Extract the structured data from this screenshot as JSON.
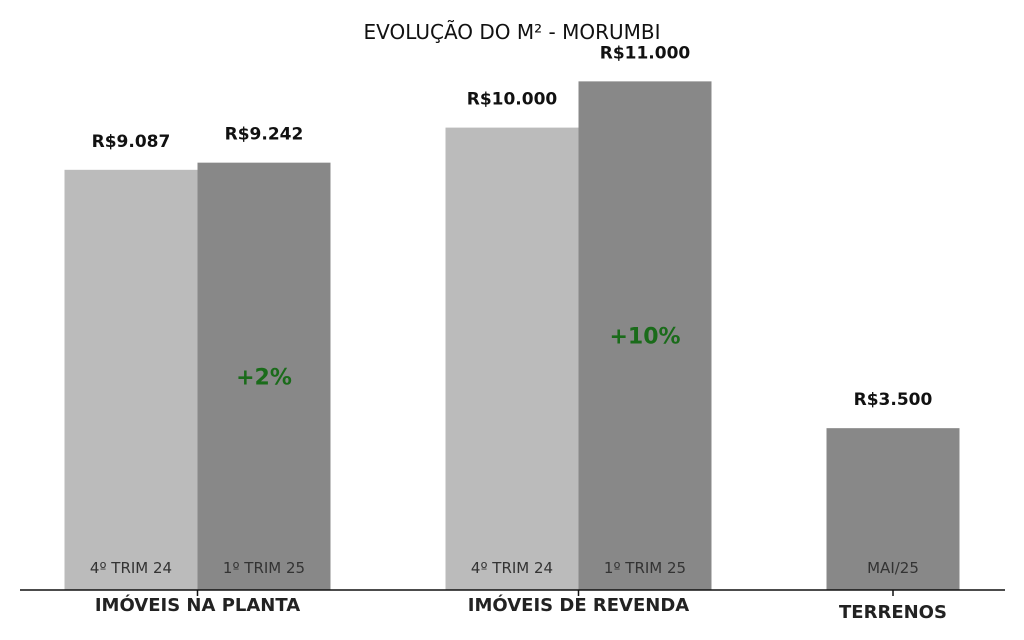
{
  "chart_data": {
    "type": "bar",
    "title": "EVOLUÇÃO DO M² - MORUMBI",
    "ylim": [
      0,
      11700
    ],
    "grid": false,
    "groups": [
      {
        "category": "IMÓVEIS NA PLANTA",
        "growth": "+2%",
        "bars": [
          {
            "period": "4º TRIM 24",
            "value": 9087,
            "label": "R$9.087",
            "color": "#bbbbbb"
          },
          {
            "period": "1º TRIM 25",
            "value": 9242,
            "label": "R$9.242",
            "color": "#888888"
          }
        ]
      },
      {
        "category": "IMÓVEIS DE REVENDA",
        "growth": "+10%",
        "bars": [
          {
            "period": "4º TRIM 24",
            "value": 10000,
            "label": "R$10.000",
            "color": "#bbbbbb"
          },
          {
            "period": "1º TRIM 25",
            "value": 11000,
            "label": "R$11.000",
            "color": "#888888"
          }
        ]
      },
      {
        "category": "TERRENOS",
        "growth": "",
        "bars": [
          {
            "period": "MAI/25",
            "value": 3500,
            "label": "R$3.500",
            "color": "#888888"
          }
        ]
      }
    ],
    "growth_color": "#1a6b1a",
    "axis_color": "#111111"
  }
}
